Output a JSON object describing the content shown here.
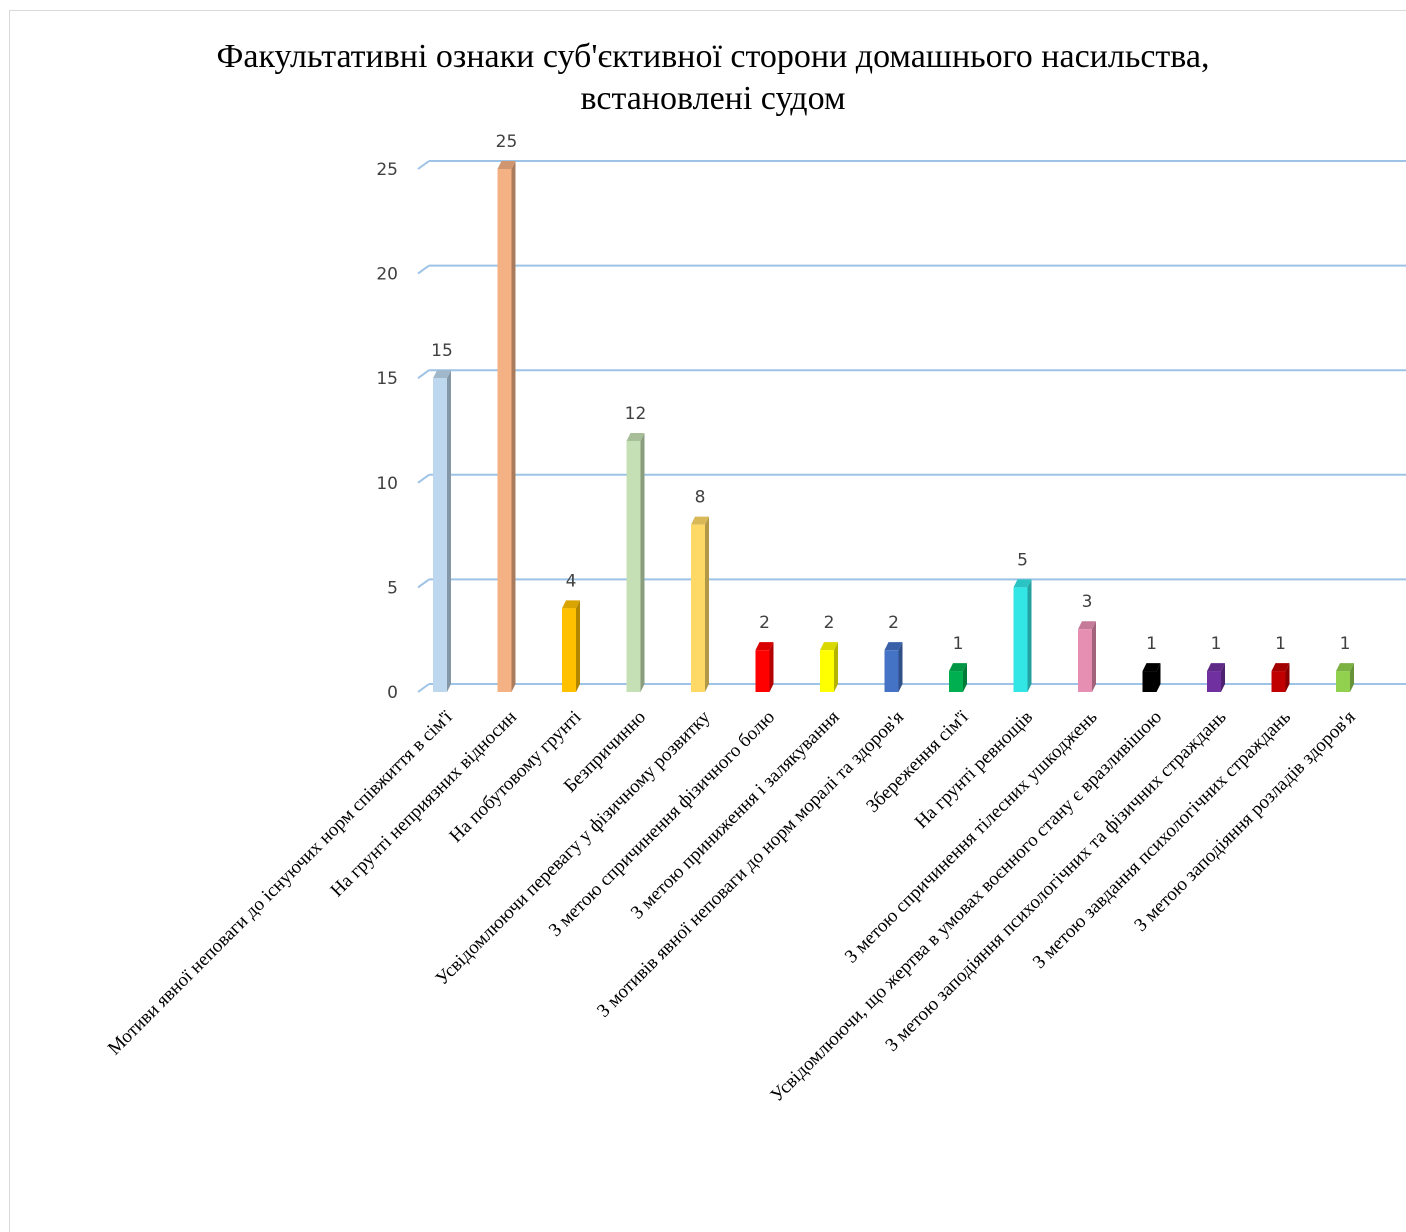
{
  "chart_data": {
    "type": "bar",
    "title_line1": "Факультативні ознаки суб'єктивної сторони домашнього насильства,",
    "title_line2": "встановлені судом",
    "title": "Факультативні ознаки суб'єктивної сторони домашнього насильства, встановлені судом",
    "xlabel": "",
    "ylabel": "",
    "ylim": [
      0,
      25
    ],
    "yticks": [
      0,
      5,
      10,
      15,
      20,
      25
    ],
    "grid": true,
    "style": "3d-column",
    "categories": [
      "Мотиви явної неповаги до існуючих норм співжиття в сім'ї",
      "На грунті неприязних відносин",
      "На побутовому грунті",
      "Безпричинно",
      "Усвідомлюючи перевагу у фізичному розвитку",
      "З метою спричинення фізичного болю",
      "З метою приниження і залякування",
      "З мотивів явної неповаги до норм моралі та здоров'я",
      "Збереження сім'ї",
      "На грунті ревнощів",
      "З метою спричинення тілесних ушкоджень",
      "Усвідомлюючи, що жертва в умовах воєнного стану є вразливішою",
      "З метою заподіяння психологічних та фізичних страждань",
      "З метою завдання психологічних страждань",
      "З метою заподіяння розладів здоров'я"
    ],
    "values": [
      15,
      25,
      4,
      12,
      8,
      2,
      2,
      2,
      1,
      5,
      3,
      1,
      1,
      1,
      1
    ],
    "colors": [
      "#bdd7ee",
      "#f4b183",
      "#ffc000",
      "#c5e0b4",
      "#ffd966",
      "#ff0000",
      "#ffff00",
      "#4472c4",
      "#00b050",
      "#33e6e6",
      "#e78fb3",
      "#000000",
      "#7030a0",
      "#c00000",
      "#92d050"
    ],
    "gridline_color": "#9dc3e6"
  }
}
